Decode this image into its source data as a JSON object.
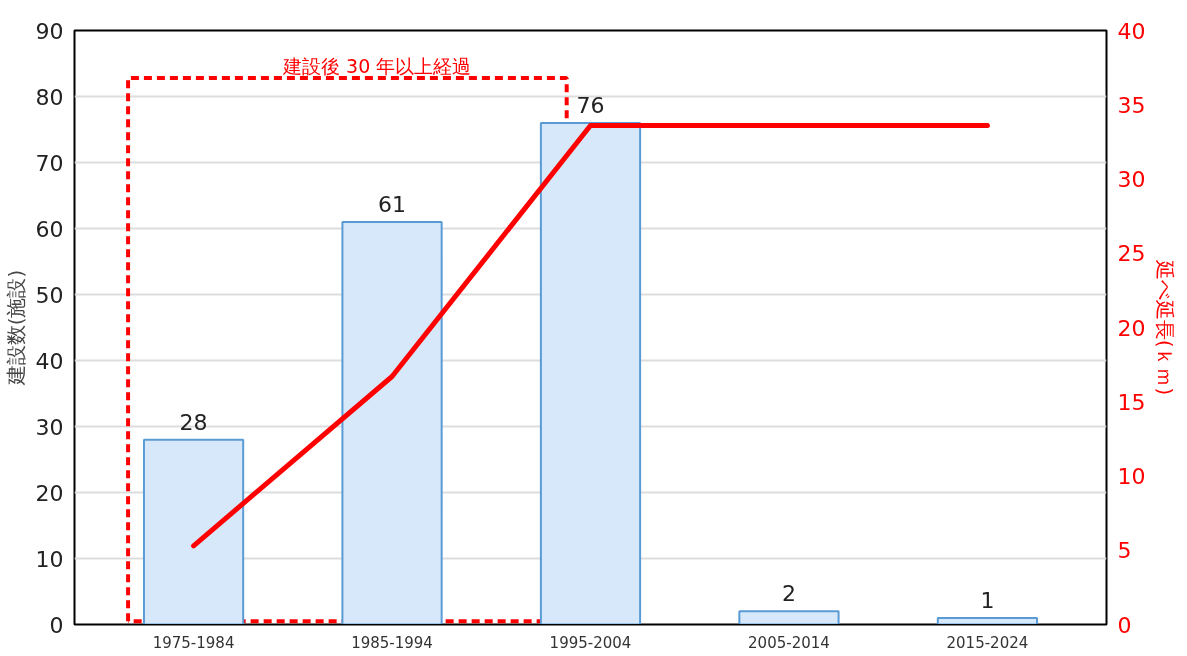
{
  "chart_data": {
    "type": "bar",
    "ylabel": "建設数(施設)",
    "y2label": "延べ延長(ｋｍ)",
    "categories": [
      "1975-1984",
      "1985-1994",
      "1995-2004",
      "2005-2014",
      "2015-2024"
    ],
    "series": [
      {
        "color": "#d6e8fa",
        "values": [
          28,
          61,
          76,
          2,
          1
        ],
        "value_labels": [
          "28",
          "61",
          "76",
          "2",
          "1"
        ]
      },
      {
        "type": "line",
        "axis": "y2",
        "color": "#ff0000",
        "values": [
          5.3,
          16.7,
          33.6,
          33.6,
          33.6
        ]
      }
    ],
    "annotations": [
      "建設後 30 年以上経過"
    ],
    "ylim": [
      0,
      90
    ],
    "yticks": [
      0,
      10,
      20,
      30,
      40,
      50,
      60,
      70,
      80,
      90
    ],
    "y2lim": [
      0,
      40
    ],
    "y2ticks": [
      0,
      5,
      10,
      15,
      20,
      25,
      30,
      35,
      40
    ],
    "grid": "y"
  }
}
